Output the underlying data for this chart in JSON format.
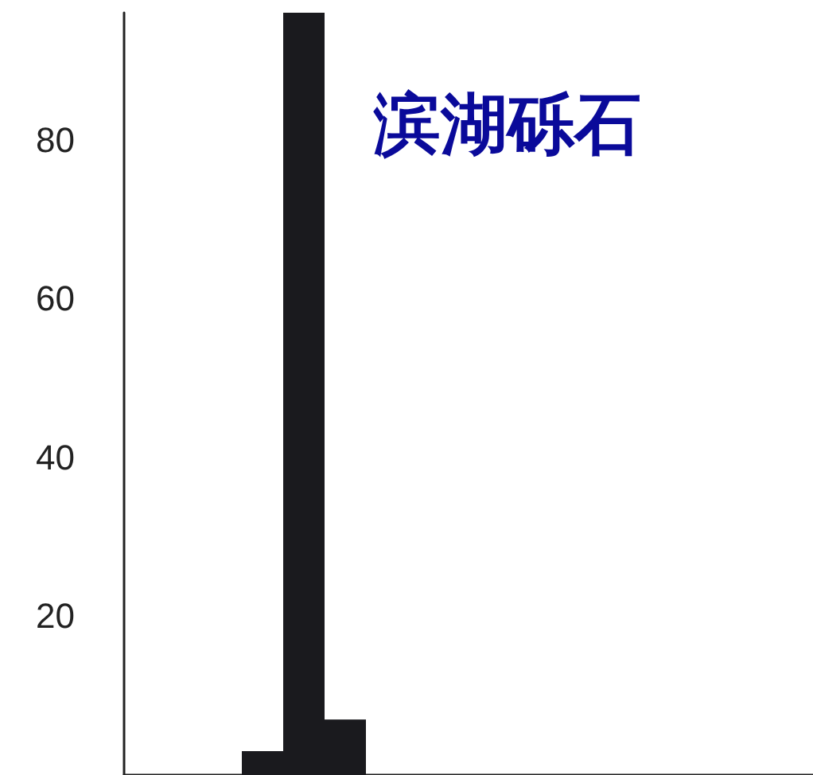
{
  "chart_data": {
    "type": "bar",
    "title": "滨湖砾石",
    "categories": [
      null,
      null,
      null
    ],
    "values": [
      3,
      96,
      7
    ],
    "color": "#1a1a1e",
    "ylim": [
      0,
      96
    ],
    "yticks": [
      20,
      40,
      60,
      80
    ],
    "grid": false,
    "tick_labels": "y"
  }
}
